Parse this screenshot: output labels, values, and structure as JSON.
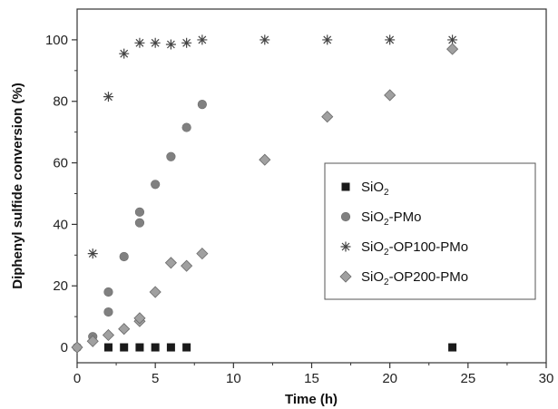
{
  "chart_data": {
    "type": "scatter",
    "xlabel": "Time (h)",
    "ylabel": "Diphenyl sulfide conversion (%)",
    "xlim": [
      0,
      30
    ],
    "ylim": [
      -5,
      110
    ],
    "xticks": [
      0,
      5,
      10,
      15,
      20,
      25,
      30
    ],
    "yticks": [
      0,
      20,
      40,
      60,
      80,
      100
    ],
    "grid": false,
    "legend_position": "right",
    "series": [
      {
        "name_main": "SiO",
        "name_sub": "2",
        "name_rest": "",
        "marker": "square",
        "color": "#1a1a1a",
        "x": [
          2,
          3,
          4,
          5,
          6,
          7,
          24
        ],
        "y": [
          0,
          0,
          0,
          0,
          0,
          0,
          0
        ]
      },
      {
        "name_main": "SiO",
        "name_sub": "2",
        "name_rest": "-PMo",
        "marker": "circle",
        "color": "#808080",
        "x": [
          0,
          1,
          2,
          2,
          3,
          4,
          4,
          5,
          6,
          7,
          8
        ],
        "y": [
          0,
          3.5,
          11.5,
          18,
          29.5,
          40.5,
          44,
          53,
          62,
          71.5,
          79
        ]
      },
      {
        "name_main": "SiO",
        "name_sub": "2",
        "name_rest": "-OP100-PMo",
        "marker": "asterisk",
        "color": "#444444",
        "x": [
          1,
          2,
          3,
          4,
          5,
          6,
          7,
          8,
          12,
          16,
          20,
          24
        ],
        "y": [
          30.5,
          81.5,
          95.5,
          99,
          99,
          98.5,
          99,
          100,
          100,
          100,
          100,
          100
        ]
      },
      {
        "name_main": "SiO",
        "name_sub": "2",
        "name_rest": "-OP200-PMo",
        "marker": "diamond",
        "color": "#a0a0a0",
        "x": [
          0,
          1,
          2,
          3,
          4,
          4,
          5,
          6,
          7,
          8,
          12,
          16,
          20,
          24
        ],
        "y": [
          0,
          2,
          4,
          6,
          8.5,
          9.5,
          18,
          27.5,
          26.5,
          30.5,
          61,
          75,
          82,
          97
        ]
      }
    ]
  }
}
